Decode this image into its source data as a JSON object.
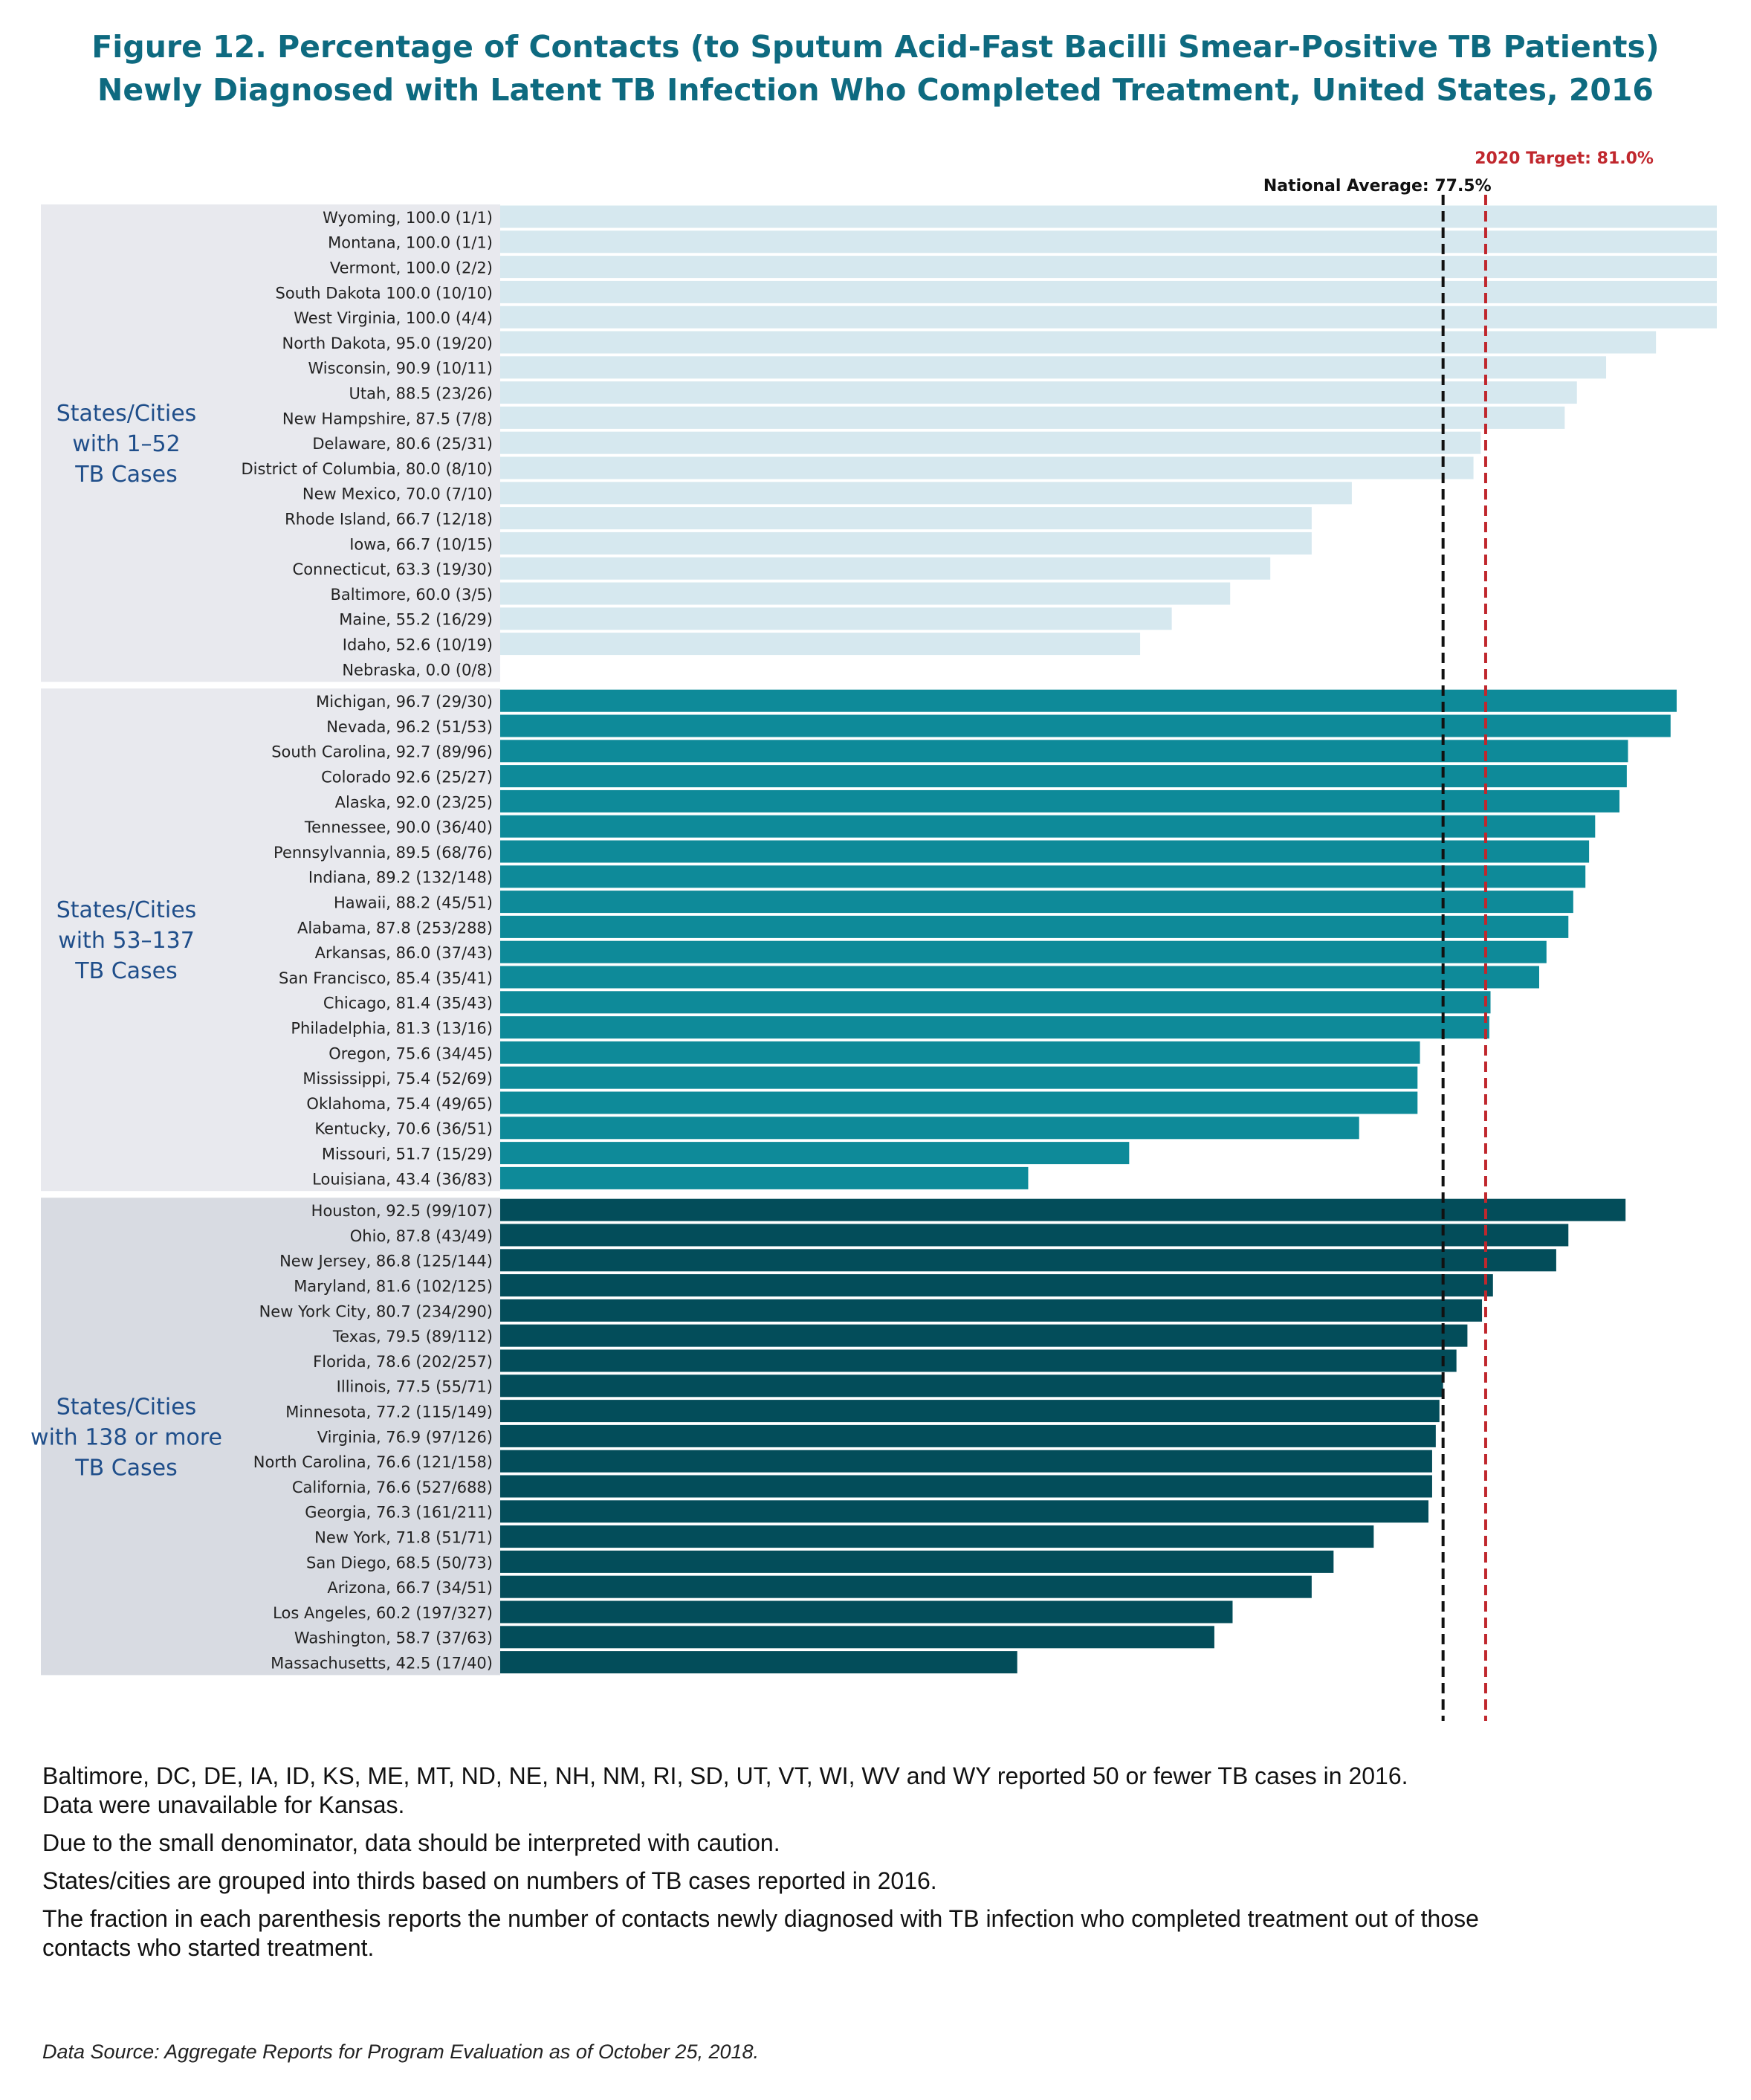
{
  "title": {
    "line1": "Figure 12. Percentage of Contacts (to Sputum Acid-Fast Bacilli Smear-Positive TB Patients)",
    "line2": "Newly Diagnosed with Latent TB Infection Who Completed Treatment, United States, 2016"
  },
  "chart_data": {
    "type": "bar",
    "orientation": "horizontal",
    "xlim": [
      0,
      100
    ],
    "reference_lines": [
      {
        "label": "National Average: 77.5%",
        "value": 77.5,
        "color": "#111111",
        "style": "dashed"
      },
      {
        "label": "2020 Target: 81.0%",
        "value": 81.0,
        "color": "#c0272d",
        "style": "dashed"
      }
    ],
    "groups": [
      {
        "label_lines": [
          "States/Cities",
          "with 1–52",
          "TB Cases"
        ],
        "bar_color": "#d6e8ef",
        "panel_color": "#e8e9ee",
        "items": [
          {
            "label": "Wyoming, 100.0 (1/1)",
            "value": 100.0
          },
          {
            "label": "Montana, 100.0 (1/1)",
            "value": 100.0
          },
          {
            "label": "Vermont, 100.0 (2/2)",
            "value": 100.0
          },
          {
            "label": "South Dakota 100.0 (10/10)",
            "value": 100.0
          },
          {
            "label": "West Virginia, 100.0 (4/4)",
            "value": 100.0
          },
          {
            "label": "North Dakota, 95.0 (19/20)",
            "value": 95.0
          },
          {
            "label": "Wisconsin, 90.9 (10/11)",
            "value": 90.9
          },
          {
            "label": "Utah, 88.5 (23/26)",
            "value": 88.5
          },
          {
            "label": "New Hampshire, 87.5 (7/8)",
            "value": 87.5
          },
          {
            "label": "Delaware, 80.6 (25/31)",
            "value": 80.6
          },
          {
            "label": "District of Columbia, 80.0 (8/10)",
            "value": 80.0
          },
          {
            "label": "New Mexico, 70.0 (7/10)",
            "value": 70.0
          },
          {
            "label": "Rhode Island, 66.7 (12/18)",
            "value": 66.7
          },
          {
            "label": "Iowa, 66.7 (10/15)",
            "value": 66.7
          },
          {
            "label": "Connecticut, 63.3 (19/30)",
            "value": 63.3
          },
          {
            "label": "Baltimore, 60.0 (3/5)",
            "value": 60.0
          },
          {
            "label": "Maine, 55.2 (16/29)",
            "value": 55.2
          },
          {
            "label": "Idaho, 52.6 (10/19)",
            "value": 52.6
          },
          {
            "label": "Nebraska, 0.0 (0/8)",
            "value": 0.0
          }
        ]
      },
      {
        "label_lines": [
          "States/Cities",
          "with 53–137",
          "TB Cases"
        ],
        "bar_color": "#0e8a99",
        "panel_color": "#e8e9ee",
        "items": [
          {
            "label": "Michigan, 96.7 (29/30)",
            "value": 96.7
          },
          {
            "label": "Nevada, 96.2 (51/53)",
            "value": 96.2
          },
          {
            "label": "South Carolina, 92.7 (89/96)",
            "value": 92.7
          },
          {
            "label": "Colorado 92.6 (25/27)",
            "value": 92.6
          },
          {
            "label": "Alaska, 92.0 (23/25)",
            "value": 92.0
          },
          {
            "label": "Tennessee, 90.0 (36/40)",
            "value": 90.0
          },
          {
            "label": "Pennsylvannia, 89.5 (68/76)",
            "value": 89.5
          },
          {
            "label": "Indiana, 89.2 (132/148)",
            "value": 89.2
          },
          {
            "label": "Hawaii, 88.2 (45/51)",
            "value": 88.2
          },
          {
            "label": "Alabama, 87.8 (253/288)",
            "value": 87.8
          },
          {
            "label": "Arkansas, 86.0 (37/43)",
            "value": 86.0
          },
          {
            "label": "San Francisco, 85.4 (35/41)",
            "value": 85.4
          },
          {
            "label": "Chicago, 81.4 (35/43)",
            "value": 81.4
          },
          {
            "label": "Philadelphia, 81.3 (13/16)",
            "value": 81.3
          },
          {
            "label": "Oregon, 75.6 (34/45)",
            "value": 75.6
          },
          {
            "label": "Mississippi, 75.4 (52/69)",
            "value": 75.4
          },
          {
            "label": "Oklahoma, 75.4 (49/65)",
            "value": 75.4
          },
          {
            "label": "Kentucky, 70.6 (36/51)",
            "value": 70.6
          },
          {
            "label": "Missouri, 51.7 (15/29)",
            "value": 51.7
          },
          {
            "label": "Louisiana, 43.4 (36/83)",
            "value": 43.4
          }
        ]
      },
      {
        "label_lines": [
          "States/Cities",
          "with 138 or more",
          "TB Cases"
        ],
        "bar_color": "#034d5a",
        "panel_color": "#d8dbe2",
        "items": [
          {
            "label": "Houston, 92.5 (99/107)",
            "value": 92.5
          },
          {
            "label": "Ohio, 87.8 (43/49)",
            "value": 87.8
          },
          {
            "label": "New Jersey, 86.8 (125/144)",
            "value": 86.8
          },
          {
            "label": "Maryland, 81.6 (102/125)",
            "value": 81.6
          },
          {
            "label": "New York City, 80.7 (234/290)",
            "value": 80.7
          },
          {
            "label": "Texas, 79.5 (89/112)",
            "value": 79.5
          },
          {
            "label": "Florida, 78.6 (202/257)",
            "value": 78.6
          },
          {
            "label": "Illinois, 77.5 (55/71)",
            "value": 77.5
          },
          {
            "label": "Minnesota, 77.2 (115/149)",
            "value": 77.2
          },
          {
            "label": "Virginia, 76.9 (97/126)",
            "value": 76.9
          },
          {
            "label": "North Carolina, 76.6 (121/158)",
            "value": 76.6
          },
          {
            "label": "California, 76.6 (527/688)",
            "value": 76.6
          },
          {
            "label": "Georgia, 76.3 (161/211)",
            "value": 76.3
          },
          {
            "label": "New York, 71.8 (51/71)",
            "value": 71.8
          },
          {
            "label": "San Diego, 68.5 (50/73)",
            "value": 68.5
          },
          {
            "label": "Arizona, 66.7 (34/51)",
            "value": 66.7
          },
          {
            "label": "Los Angeles, 60.2 (197/327)",
            "value": 60.2
          },
          {
            "label": "Washington, 58.7 (37/63)",
            "value": 58.7
          },
          {
            "label": "Massachusetts, 42.5 (17/40)",
            "value": 42.5
          }
        ]
      }
    ]
  },
  "notes": [
    [
      "Baltimore, DC, DE, IA, ID, KS, ME, MT, ND, NE, NH, NM, RI, SD, UT, VT, WI, WV and WY reported 50 or fewer TB cases in 2016.",
      "Data were unavailable for Kansas."
    ],
    [
      "Due to the small denominator, data should be interpreted with caution."
    ],
    [
      "States/cities are grouped into thirds based on numbers of TB cases reported in 2016."
    ],
    [
      "The fraction in each parenthesis reports the number of contacts newly diagnosed with TB infection who completed treatment out of those",
      "contacts who started treatment."
    ]
  ],
  "source": "Data Source: Aggregate Reports for Program Evaluation as of October 25, 2018."
}
